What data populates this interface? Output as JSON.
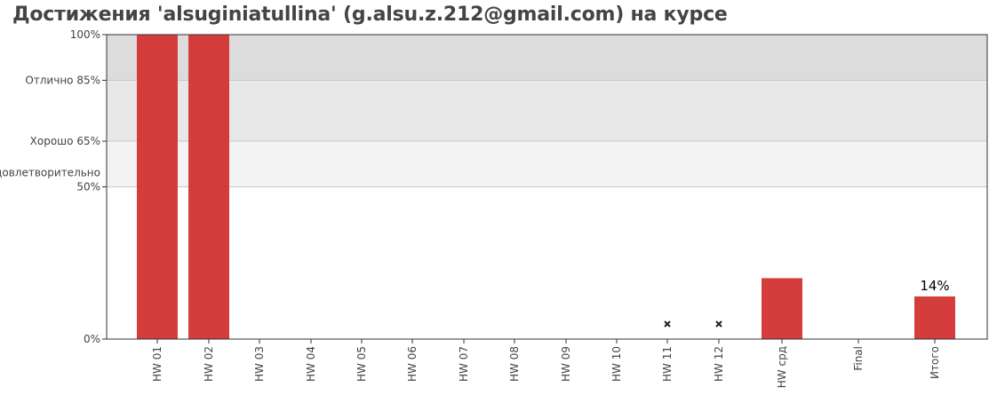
{
  "title": "Достижения 'alsuginiatullina' (g.alsu.z.212@gmail.com) на курсе",
  "chart_data": {
    "type": "bar",
    "ylim": [
      0,
      100
    ],
    "y_ticks": [
      {
        "value": 100,
        "lines": [
          "100%"
        ]
      },
      {
        "value": 85,
        "lines": [
          "Отлично 85%"
        ]
      },
      {
        "value": 65,
        "lines": [
          "Хорошо 65%"
        ]
      },
      {
        "value": 50,
        "lines": [
          "Удовлетворительно",
          "50%"
        ]
      },
      {
        "value": 0,
        "lines": [
          "0%"
        ]
      }
    ],
    "bands": [
      {
        "from": 85,
        "to": 100,
        "color": "#dcdcdc"
      },
      {
        "from": 65,
        "to": 85,
        "color": "#e8e8e8"
      },
      {
        "from": 50,
        "to": 65,
        "color": "#f3f3f3"
      },
      {
        "from": 0,
        "to": 50,
        "color": "#ffffff"
      }
    ],
    "categories": [
      "HW 01",
      "HW 02",
      "HW 03",
      "HW 04",
      "HW 05",
      "HW 06",
      "HW 07",
      "HW 08",
      "HW 09",
      "HW 10",
      "HW 11",
      "HW 12",
      "HW срд",
      "Final",
      "Итого"
    ],
    "values": [
      100,
      100,
      0,
      0,
      0,
      0,
      0,
      0,
      0,
      0,
      0,
      0,
      20,
      0,
      14
    ],
    "missing_markers": [
      "HW 11",
      "HW 12"
    ],
    "data_labels": [
      {
        "category": "Итого",
        "text": "14%"
      }
    ],
    "bar_color": "#d33333",
    "grid": true
  }
}
